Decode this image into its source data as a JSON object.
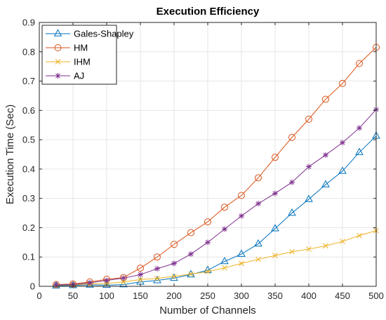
{
  "chart_data": {
    "type": "line",
    "title": "Execution Efficiency",
    "xlabel": "Number of Channels",
    "ylabel": "Execution Time (Sec)",
    "xlim": [
      0,
      500
    ],
    "ylim": [
      0,
      0.9
    ],
    "x_ticks": [
      0,
      50,
      100,
      150,
      200,
      250,
      300,
      350,
      400,
      450,
      500
    ],
    "y_ticks": [
      0,
      0.1,
      0.2,
      0.3,
      0.4,
      0.5,
      0.6,
      0.7,
      0.8,
      0.9
    ],
    "grid": true,
    "legend_position": "top-left",
    "x": [
      25,
      50,
      75,
      100,
      125,
      150,
      175,
      200,
      225,
      250,
      275,
      300,
      325,
      350,
      375,
      400,
      425,
      450,
      475,
      500
    ],
    "series": [
      {
        "name": "Gales-Shapley",
        "color": "#0072BD",
        "marker": "triangle",
        "values": [
          0.002,
          0.003,
          0.005,
          0.004,
          0.006,
          0.015,
          0.02,
          0.028,
          0.04,
          0.055,
          0.085,
          0.11,
          0.145,
          0.197,
          0.25,
          0.297,
          0.347,
          0.393,
          0.457,
          0.513
        ]
      },
      {
        "name": "HM",
        "color": "#D95319",
        "marker": "circle",
        "values": [
          0.006,
          0.008,
          0.015,
          0.024,
          0.03,
          0.062,
          0.1,
          0.143,
          0.183,
          0.22,
          0.27,
          0.31,
          0.37,
          0.44,
          0.508,
          0.57,
          0.638,
          0.692,
          0.76,
          0.815
        ]
      },
      {
        "name": "IHM",
        "color": "#EDB120",
        "marker": "x",
        "values": [
          0.004,
          0.005,
          0.008,
          0.01,
          0.015,
          0.023,
          0.027,
          0.034,
          0.042,
          0.05,
          0.063,
          0.078,
          0.092,
          0.105,
          0.118,
          0.127,
          0.138,
          0.153,
          0.173,
          0.19
        ]
      },
      {
        "name": "AJ",
        "color": "#7E2F8E",
        "marker": "star",
        "values": [
          0.005,
          0.006,
          0.012,
          0.02,
          0.028,
          0.04,
          0.06,
          0.078,
          0.11,
          0.15,
          0.195,
          0.24,
          0.282,
          0.317,
          0.355,
          0.408,
          0.448,
          0.49,
          0.54,
          0.603
        ]
      }
    ]
  }
}
